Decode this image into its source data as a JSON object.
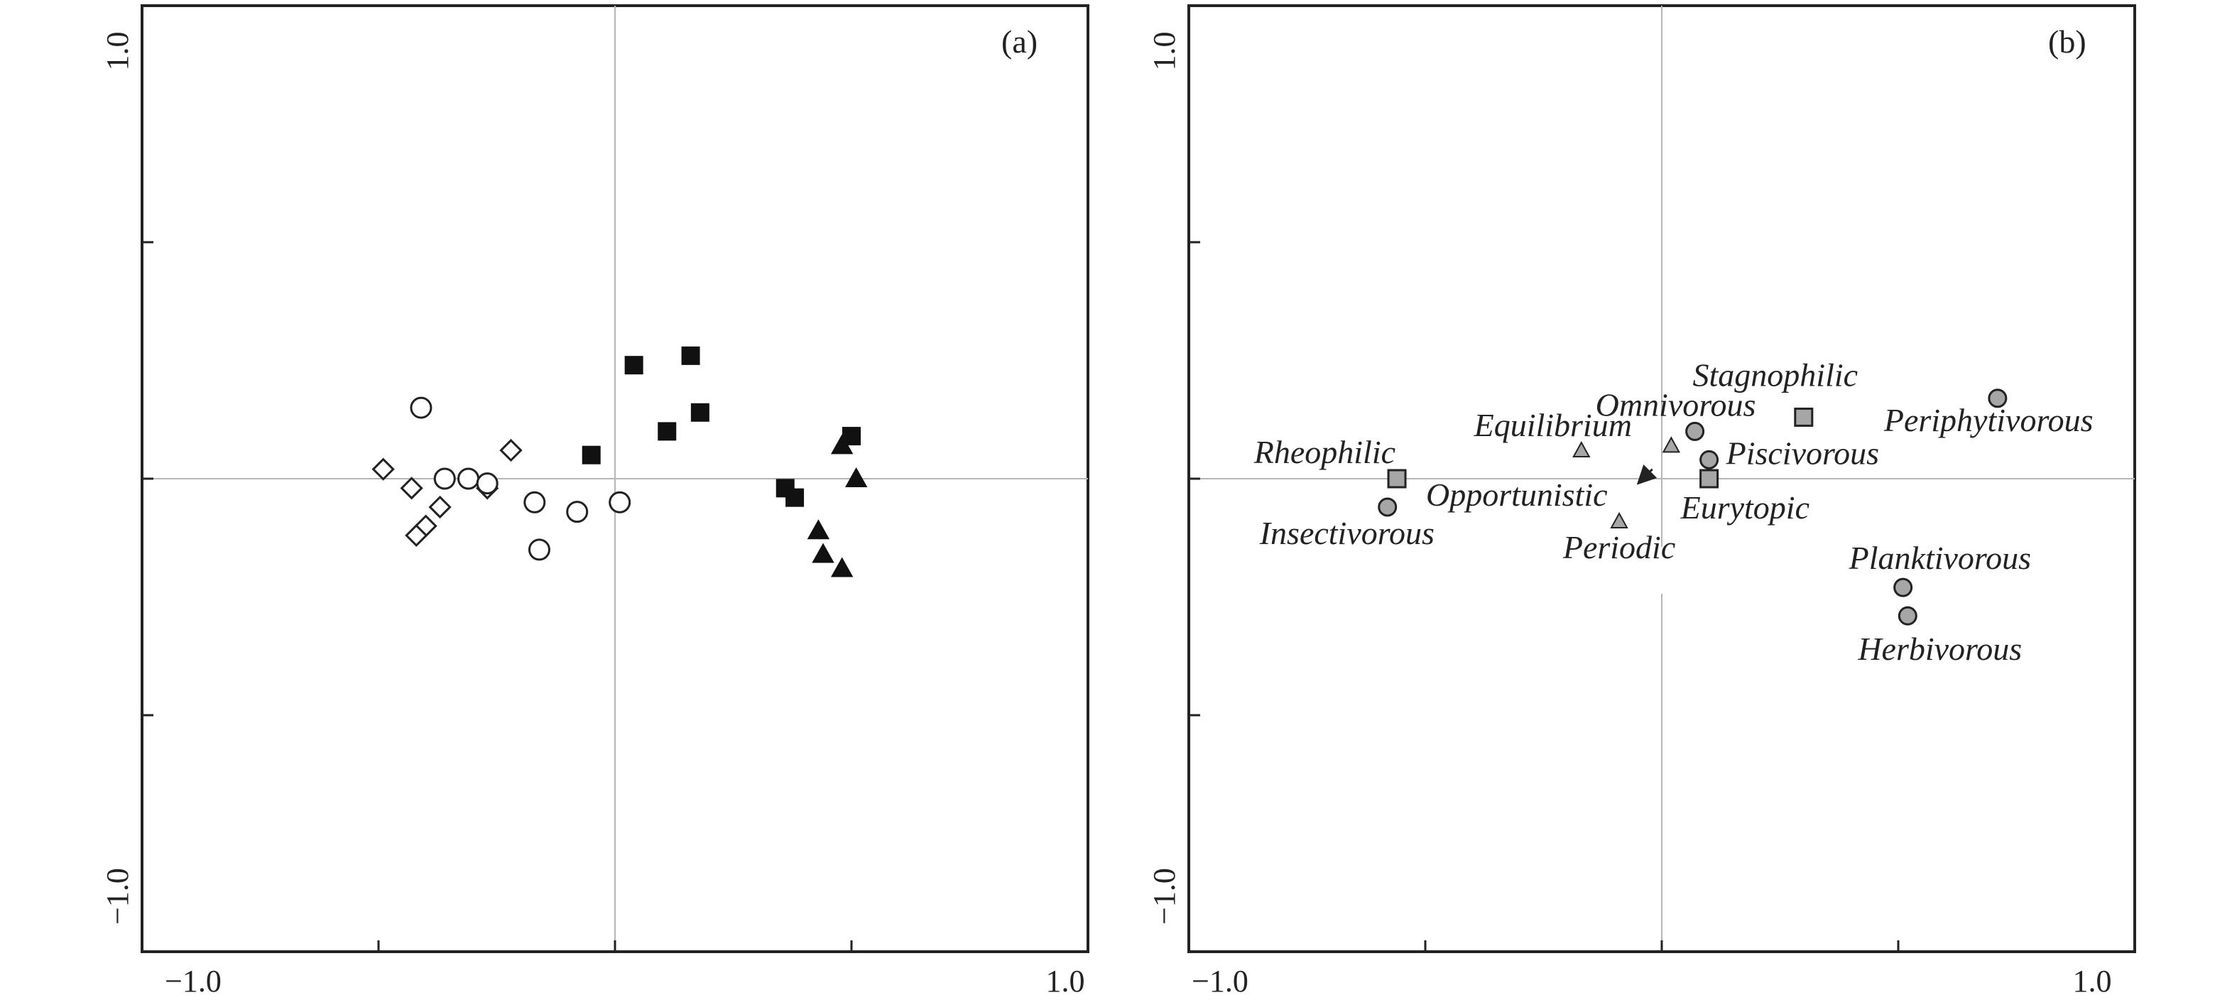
{
  "chart_data": [
    {
      "type": "scatter",
      "panel_label": "(a)",
      "xlim": [
        -1.0,
        1.0
      ],
      "ylim": [
        -1.0,
        1.0
      ],
      "x_tick_labels": [
        "−1.0",
        "1.0"
      ],
      "y_tick_labels": [
        "−1.0",
        "1.0"
      ],
      "reference_lines": "x=0, y=0",
      "grid": false,
      "series": [
        {
          "marker": "open-diamond",
          "points": [
            {
              "x": -0.49,
              "y": 0.02
            },
            {
              "x": -0.43,
              "y": -0.02
            },
            {
              "x": -0.37,
              "y": -0.06
            },
            {
              "x": -0.4,
              "y": -0.1
            },
            {
              "x": -0.42,
              "y": -0.12
            },
            {
              "x": -0.22,
              "y": 0.06
            },
            {
              "x": -0.27,
              "y": -0.02
            }
          ]
        },
        {
          "marker": "open-circle",
          "points": [
            {
              "x": -0.41,
              "y": 0.15
            },
            {
              "x": -0.36,
              "y": 0.0
            },
            {
              "x": -0.31,
              "y": 0.0
            },
            {
              "x": -0.27,
              "y": -0.01
            },
            {
              "x": -0.17,
              "y": -0.05
            },
            {
              "x": -0.16,
              "y": -0.15
            },
            {
              "x": -0.08,
              "y": -0.07
            },
            {
              "x": 0.01,
              "y": -0.05
            }
          ]
        },
        {
          "marker": "filled-square",
          "points": [
            {
              "x": -0.05,
              "y": 0.05
            },
            {
              "x": 0.04,
              "y": 0.24
            },
            {
              "x": 0.11,
              "y": 0.1
            },
            {
              "x": 0.16,
              "y": 0.26
            },
            {
              "x": 0.18,
              "y": 0.14
            },
            {
              "x": 0.36,
              "y": -0.02
            },
            {
              "x": 0.38,
              "y": -0.04
            },
            {
              "x": 0.5,
              "y": 0.09
            }
          ]
        },
        {
          "marker": "filled-triangle",
          "points": [
            {
              "x": 0.48,
              "y": 0.07
            },
            {
              "x": 0.51,
              "y": 0.0
            },
            {
              "x": 0.43,
              "y": -0.11
            },
            {
              "x": 0.44,
              "y": -0.16
            },
            {
              "x": 0.48,
              "y": -0.19
            }
          ]
        }
      ]
    },
    {
      "type": "scatter",
      "panel_label": "(b)",
      "xlim": [
        -1.0,
        1.0
      ],
      "ylim": [
        -1.0,
        1.0
      ],
      "x_tick_labels": [
        "−1.0",
        "1.0"
      ],
      "y_tick_labels": [
        "−1.0",
        "1.0"
      ],
      "reference_lines": "x=0, y=0",
      "grid": false,
      "fill_color": "#a6a6a6",
      "annotations": [
        {
          "text": "Opportunistic",
          "arrow_from": {
            "x": -0.02,
            "y": 0.02
          },
          "arrow_to": {
            "x": -0.05,
            "y": -0.01
          }
        }
      ],
      "series": [
        {
          "marker": "gray-square",
          "points": [
            {
              "x": -0.56,
              "y": 0.0,
              "label": "Rheophilic"
            },
            {
              "x": 0.3,
              "y": 0.13,
              "label": "Stagnophilic"
            },
            {
              "x": 0.1,
              "y": 0.0,
              "label": "Eurytopic"
            }
          ]
        },
        {
          "marker": "gray-triangle",
          "points": [
            {
              "x": -0.17,
              "y": 0.06,
              "label": "Equilibrium"
            },
            {
              "x": 0.02,
              "y": 0.07,
              "label": ""
            },
            {
              "x": -0.09,
              "y": -0.09,
              "label": "Periodic"
            }
          ]
        },
        {
          "marker": "gray-circle",
          "points": [
            {
              "x": -0.58,
              "y": -0.06,
              "label": "Insectivorous"
            },
            {
              "x": 0.07,
              "y": 0.1,
              "label": "Omnivorous"
            },
            {
              "x": 0.1,
              "y": 0.04,
              "label": "Piscivorous"
            },
            {
              "x": 0.71,
              "y": 0.17,
              "label": "Periphytivorous"
            },
            {
              "x": 0.51,
              "y": -0.23,
              "label": "Planktivorous"
            },
            {
              "x": 0.52,
              "y": -0.29,
              "label": "Herbivorous"
            }
          ]
        }
      ]
    }
  ]
}
